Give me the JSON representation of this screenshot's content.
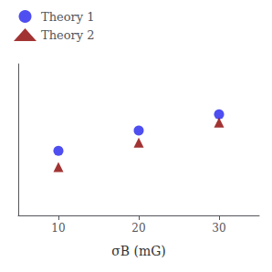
{
  "chart_data": {
    "type": "scatter",
    "x": [
      10,
      20,
      30
    ],
    "series": [
      {
        "name": "Theory 1",
        "color": "#2222ee",
        "marker": "circle",
        "values": [
          0.62,
          0.72,
          0.8
        ]
      },
      {
        "name": "Theory 2",
        "color": "#8b0000",
        "marker": "triangle",
        "values": [
          0.54,
          0.66,
          0.76
        ]
      }
    ],
    "x_label": "σB (mG)",
    "xlim": [
      5,
      35
    ],
    "xticks": [
      10,
      20,
      30
    ],
    "ylim": [
      0.3,
      1.05
    ],
    "tick_labels": "x",
    "grid": false,
    "legend": "upper left"
  }
}
